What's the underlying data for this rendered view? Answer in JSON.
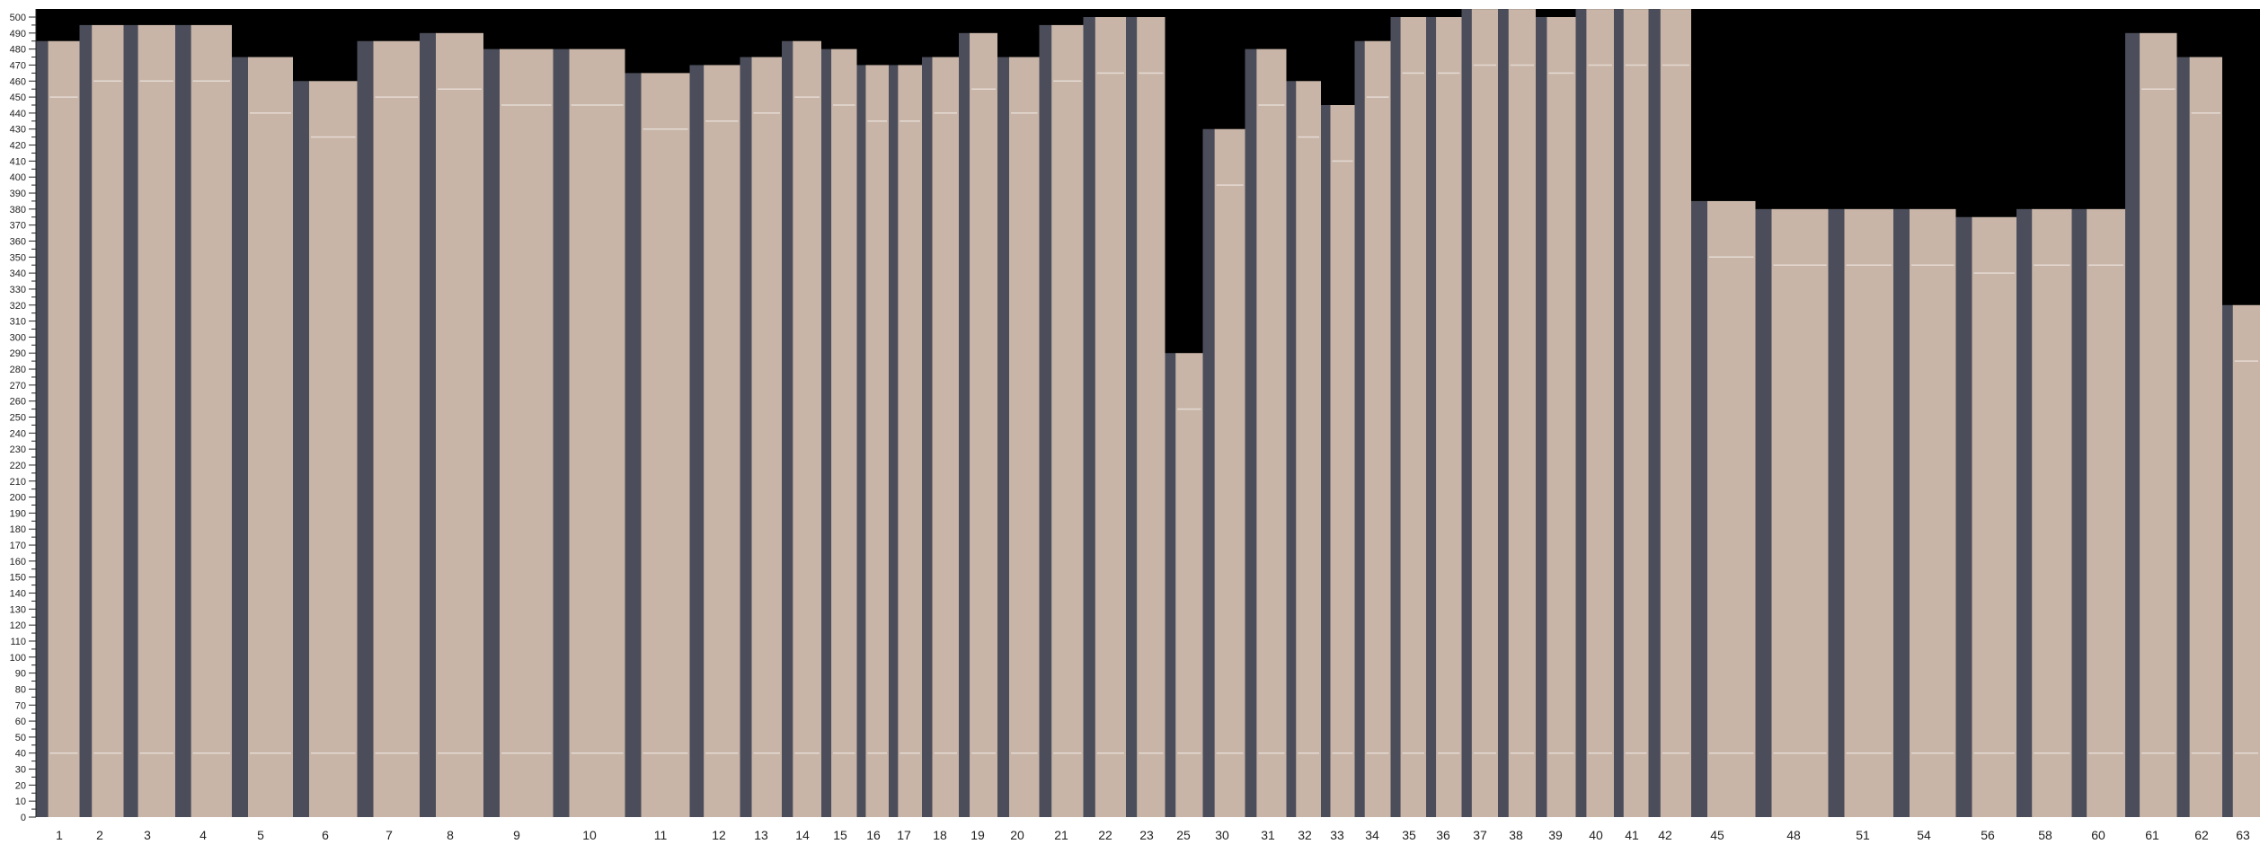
{
  "chart_data": {
    "type": "bar",
    "title": "",
    "xlabel": "",
    "ylabel": "",
    "ylim": [
      0,
      500
    ],
    "y_tick_step": 10,
    "grid": false,
    "categories": [
      "1",
      "2",
      "3",
      "4",
      "5",
      "6",
      "7",
      "8",
      "9",
      "10",
      "11",
      "12",
      "13",
      "14",
      "15",
      "16",
      "17",
      "18",
      "19",
      "20",
      "21",
      "22",
      "23",
      "25",
      "30",
      "31",
      "32",
      "33",
      "34",
      "35",
      "36",
      "37",
      "38",
      "39",
      "40",
      "41",
      "42",
      "45",
      "48",
      "51",
      "54",
      "56",
      "58",
      "60",
      "61",
      "62",
      "63"
    ],
    "values": [
      485,
      495,
      495,
      495,
      475,
      460,
      485,
      490,
      480,
      480,
      465,
      470,
      475,
      485,
      480,
      470,
      470,
      475,
      490,
      475,
      495,
      500,
      500,
      290,
      430,
      480,
      460,
      445,
      485,
      500,
      500,
      505,
      505,
      500,
      505,
      505,
      505,
      385,
      380,
      380,
      380,
      375,
      380,
      380,
      490,
      475,
      320
    ],
    "colors": {
      "background": "#000000",
      "wood": "#c8b5a8",
      "shadow": "#4b4d5a",
      "seam": "#ece4de",
      "axis": "#222222"
    }
  }
}
